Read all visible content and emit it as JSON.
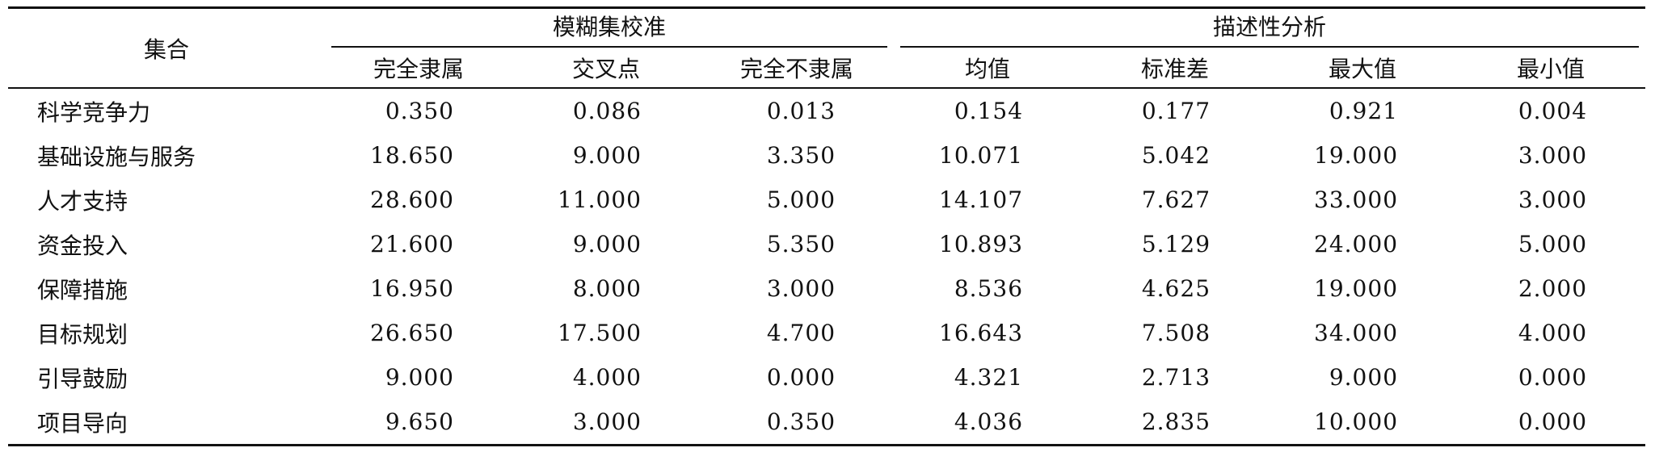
{
  "table": {
    "header": {
      "set_label": "集合",
      "groups": [
        {
          "title": "模糊集校准",
          "columns": [
            "完全隶属",
            "交叉点",
            "完全不隶属"
          ]
        },
        {
          "title": "描述性分析",
          "columns": [
            "均值",
            "标准差",
            "最大值",
            "最小值"
          ]
        }
      ]
    },
    "rows": [
      [
        "科学竞争力",
        "0.350",
        "0.086",
        "0.013",
        "0.154",
        "0.177",
        "0.921",
        "0.004"
      ],
      [
        "基础设施与服务",
        "18.650",
        "9.000",
        "3.350",
        "10.071",
        "5.042",
        "19.000",
        "3.000"
      ],
      [
        "人才支持",
        "28.600",
        "11.000",
        "5.000",
        "14.107",
        "7.627",
        "33.000",
        "3.000"
      ],
      [
        "资金投入",
        "21.600",
        "9.000",
        "5.350",
        "10.893",
        "5.129",
        "24.000",
        "5.000"
      ],
      [
        "保障措施",
        "16.950",
        "8.000",
        "3.000",
        "8.536",
        "4.625",
        "19.000",
        "2.000"
      ],
      [
        "目标规划",
        "26.650",
        "17.500",
        "4.700",
        "16.643",
        "7.508",
        "34.000",
        "4.000"
      ],
      [
        "引导鼓励",
        "9.000",
        "4.000",
        "0.000",
        "4.321",
        "2.713",
        "9.000",
        "0.000"
      ],
      [
        "项目导向",
        "9.650",
        "3.000",
        "0.350",
        "4.036",
        "2.835",
        "10.000",
        "0.000"
      ]
    ]
  }
}
